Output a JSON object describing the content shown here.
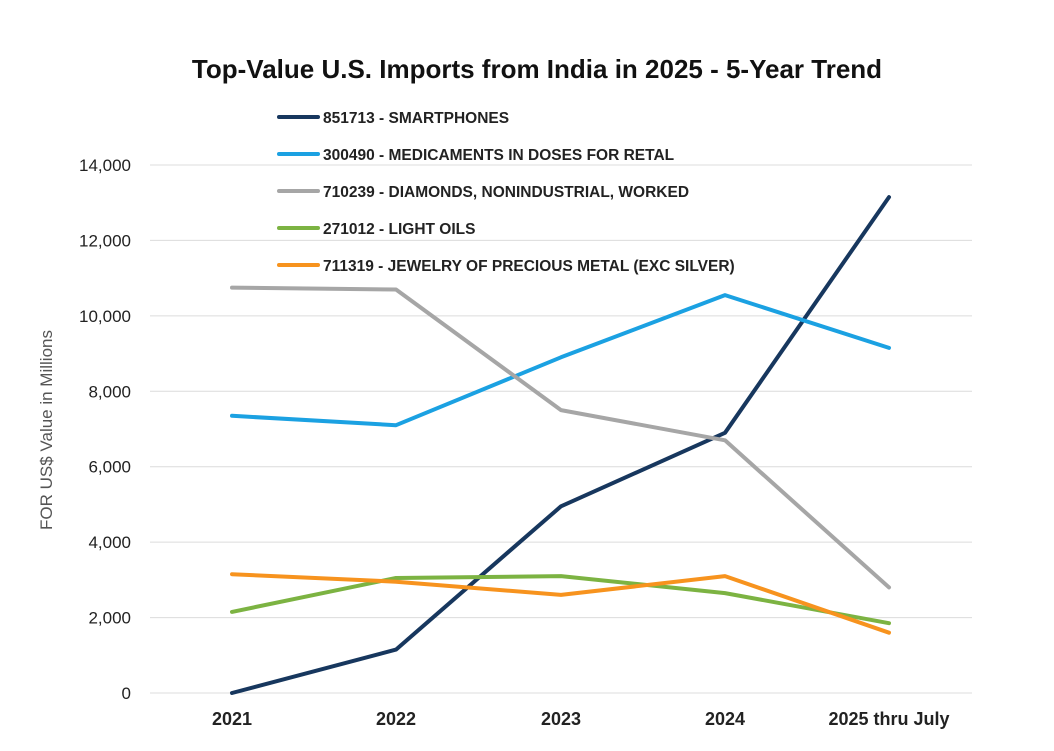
{
  "chart_data": {
    "type": "line",
    "title": "Top-Value U.S. Imports from India in 2025 - 5-Year Trend",
    "xlabel": "",
    "ylabel": "FOR US$ Value in Millions",
    "categories": [
      "2021",
      "2022",
      "2023",
      "2024",
      "2025 thru July"
    ],
    "ylim": [
      0,
      14000
    ],
    "yticks": [
      0,
      2000,
      4000,
      6000,
      8000,
      10000,
      12000,
      14000
    ],
    "ytick_labels": [
      "0",
      "2,000",
      "4,000",
      "6,000",
      "8,000",
      "10,000",
      "12,000",
      "14,000"
    ],
    "grid": "horizontal",
    "legend_position": "top",
    "series": [
      {
        "name": "851713 - SMARTPHONES",
        "color": "#17375e",
        "values": [
          0,
          1150,
          4950,
          6900,
          13150
        ]
      },
      {
        "name": "300490 - MEDICAMENTS IN DOSES FOR RETAL",
        "color": "#1ba1e2",
        "values": [
          7350,
          7100,
          8900,
          10550,
          9150
        ]
      },
      {
        "name": "710239 - DIAMONDS, NONINDUSTRIAL, WORKED",
        "color": "#a6a6a6",
        "values": [
          10750,
          10700,
          7500,
          6700,
          2800
        ]
      },
      {
        "name": "271012 - LIGHT OILS",
        "color": "#7cb342",
        "values": [
          2150,
          3050,
          3100,
          2650,
          1850
        ]
      },
      {
        "name": "711319 - JEWELRY OF PRECIOUS METAL (EXC SILVER)",
        "color": "#f7931e",
        "values": [
          3150,
          2950,
          2600,
          3100,
          1600
        ]
      }
    ]
  }
}
